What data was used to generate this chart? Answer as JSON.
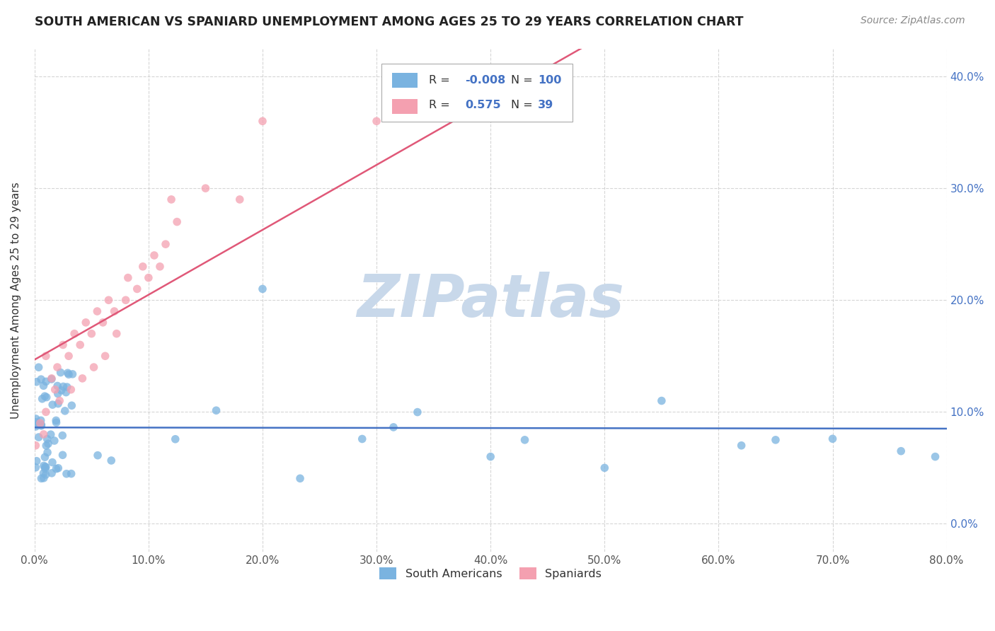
{
  "title": "SOUTH AMERICAN VS SPANIARD UNEMPLOYMENT AMONG AGES 25 TO 29 YEARS CORRELATION CHART",
  "source": "Source: ZipAtlas.com",
  "ylabel": "Unemployment Among Ages 25 to 29 years",
  "xlim": [
    0.0,
    0.8
  ],
  "ylim": [
    -0.025,
    0.425
  ],
  "xticks": [
    0.0,
    0.1,
    0.2,
    0.3,
    0.4,
    0.5,
    0.6,
    0.7,
    0.8
  ],
  "yticks": [
    0.0,
    0.1,
    0.2,
    0.3,
    0.4
  ],
  "xtick_labels": [
    "0.0%",
    "10.0%",
    "20.0%",
    "30.0%",
    "40.0%",
    "50.0%",
    "60.0%",
    "70.0%",
    "80.0%"
  ],
  "ytick_labels": [
    "0.0%",
    "10.0%",
    "20.0%",
    "30.0%",
    "40.0%"
  ],
  "r_south_american": -0.008,
  "n_south_american": 100,
  "r_spaniard": 0.575,
  "n_spaniard": 39,
  "blue_color": "#7ab3e0",
  "pink_color": "#f4a0b0",
  "trend_line_color_blue": "#4472c4",
  "trend_line_color_pink": "#e05878",
  "watermark": "ZIPatlas",
  "watermark_color": "#c8d8ea",
  "legend_r_color": "#4472c4",
  "tick_color": "#4472c4",
  "left_tick_color": "#888888"
}
